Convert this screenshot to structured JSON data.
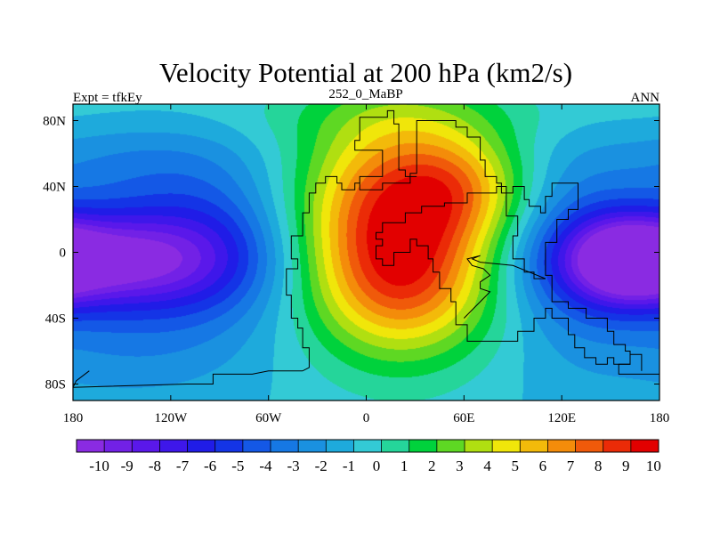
{
  "chart_data": {
    "type": "heatmap",
    "title": "Velocity Potential at 200 hPa (km2/s)",
    "left_string": "Expt = tfkEy",
    "center_string": "252_0_MaBP",
    "right_string": "ANN",
    "x_ticks": [
      "180",
      "120W",
      "60W",
      "0",
      "60E",
      "120E",
      "180"
    ],
    "y_ticks": [
      "80N",
      "40N",
      "0",
      "40S",
      "80S"
    ],
    "xlim": [
      -180,
      180
    ],
    "ylim": [
      -90,
      90
    ],
    "colorbar": {
      "min": -10,
      "max": 10,
      "labels": [
        "-10",
        "-9",
        "-8",
        "-7",
        "-6",
        "-5",
        "-4",
        "-3",
        "-2",
        "-1",
        "0",
        "1",
        "2",
        "3",
        "4",
        "5",
        "6",
        "7",
        "8",
        "9",
        "10"
      ]
    },
    "field_features": [
      {
        "type": "max",
        "lon": 20,
        "lat": 15,
        "value": 10
      },
      {
        "type": "min",
        "lon": -165,
        "lat": -5,
        "value": -9.5
      },
      {
        "type": "min",
        "lon": 160,
        "lat": -5,
        "value": -8
      }
    ],
    "continent_outlines": [
      [
        [
          -39,
          -72
        ],
        [
          -60,
          -72
        ],
        [
          -70,
          -74
        ],
        [
          -84,
          -74
        ],
        [
          -94,
          -74
        ],
        [
          -94,
          -80
        ],
        [
          -110,
          -80
        ],
        [
          -180,
          -82
        ]
      ],
      [
        [
          -39,
          -72
        ],
        [
          -35,
          -70
        ],
        [
          -35,
          -58
        ],
        [
          -39,
          -58
        ],
        [
          -39,
          -46
        ],
        [
          -42,
          -46
        ],
        [
          -42,
          -40
        ],
        [
          -46,
          -40
        ],
        [
          -46,
          -26
        ],
        [
          -49,
          -26
        ],
        [
          -49,
          -10
        ],
        [
          -42,
          -10
        ],
        [
          -42,
          -4
        ],
        [
          -46,
          -4
        ],
        [
          -46,
          10
        ],
        [
          -39,
          10
        ],
        [
          -39,
          24
        ],
        [
          -35,
          24
        ],
        [
          -35,
          36
        ],
        [
          -31,
          36
        ],
        [
          -31,
          42
        ],
        [
          -25,
          42
        ],
        [
          -25,
          46
        ],
        [
          -18,
          46
        ],
        [
          -18,
          42
        ],
        [
          -15,
          42
        ],
        [
          -15,
          38
        ],
        [
          -7,
          38
        ],
        [
          -7,
          42
        ],
        [
          -4,
          42
        ],
        [
          -4,
          38
        ],
        [
          10,
          38
        ],
        [
          10,
          42
        ],
        [
          27,
          42
        ],
        [
          27,
          48
        ],
        [
          31,
          48
        ],
        [
          31,
          80
        ],
        [
          55,
          80
        ],
        [
          55,
          76
        ],
        [
          62,
          76
        ],
        [
          62,
          70
        ],
        [
          70,
          70
        ],
        [
          70,
          56
        ],
        [
          73,
          56
        ],
        [
          73,
          46
        ],
        [
          80,
          46
        ],
        [
          80,
          42
        ],
        [
          83,
          42
        ],
        [
          83,
          36
        ],
        [
          90,
          36
        ],
        [
          90,
          40
        ],
        [
          97,
          40
        ],
        [
          97,
          32
        ],
        [
          100,
          32
        ],
        [
          100,
          28
        ],
        [
          107,
          28
        ],
        [
          107,
          24
        ],
        [
          110,
          24
        ],
        [
          110,
          34
        ],
        [
          114,
          34
        ],
        [
          114,
          42
        ],
        [
          130,
          42
        ],
        [
          130,
          26
        ],
        [
          124,
          26
        ],
        [
          124,
          20
        ],
        [
          117,
          20
        ],
        [
          117,
          6
        ],
        [
          110,
          6
        ],
        [
          110,
          -14
        ],
        [
          114,
          -14
        ],
        [
          114,
          -30
        ],
        [
          124,
          -30
        ],
        [
          124,
          -34
        ],
        [
          135,
          -34
        ],
        [
          135,
          -40
        ],
        [
          148,
          -40
        ],
        [
          148,
          -48
        ],
        [
          152,
          -48
        ],
        [
          152,
          -56
        ],
        [
          159,
          -56
        ],
        [
          159,
          -60
        ],
        [
          162,
          -60
        ],
        [
          162,
          -68
        ],
        [
          152,
          -68
        ],
        [
          152,
          -64
        ],
        [
          148,
          -64
        ],
        [
          148,
          -68
        ],
        [
          141,
          -68
        ],
        [
          141,
          -64
        ],
        [
          134,
          -64
        ],
        [
          134,
          -58
        ],
        [
          128,
          -58
        ],
        [
          128,
          -50
        ],
        [
          124,
          -50
        ],
        [
          124,
          -40
        ],
        [
          114,
          -40
        ],
        [
          114,
          -34
        ],
        [
          110,
          -34
        ],
        [
          110,
          -40
        ],
        [
          103,
          -40
        ],
        [
          103,
          -48
        ],
        [
          93,
          -48
        ],
        [
          93,
          -54
        ],
        [
          62,
          -54
        ],
        [
          62,
          -44
        ],
        [
          55,
          -44
        ],
        [
          55,
          -30
        ],
        [
          52,
          -30
        ],
        [
          52,
          -22
        ],
        [
          45,
          -22
        ],
        [
          45,
          -12
        ],
        [
          41,
          -12
        ],
        [
          41,
          -4
        ],
        [
          38,
          -4
        ],
        [
          38,
          4
        ],
        [
          31,
          4
        ],
        [
          31,
          8
        ],
        [
          27,
          8
        ],
        [
          27,
          0
        ],
        [
          17,
          0
        ],
        [
          17,
          -8
        ],
        [
          10,
          -8
        ],
        [
          10,
          -4
        ],
        [
          6,
          -4
        ],
        [
          6,
          4
        ],
        [
          10,
          4
        ],
        [
          10,
          8
        ],
        [
          6,
          8
        ],
        [
          6,
          12
        ],
        [
          10,
          12
        ],
        [
          10,
          18
        ],
        [
          24,
          18
        ],
        [
          24,
          24
        ],
        [
          34,
          24
        ],
        [
          34,
          28
        ],
        [
          48,
          28
        ],
        [
          48,
          30
        ],
        [
          62,
          30
        ],
        [
          62,
          36
        ],
        [
          80,
          36
        ],
        [
          80,
          40
        ],
        [
          86,
          40
        ],
        [
          86,
          22
        ],
        [
          93,
          22
        ],
        [
          93,
          10
        ],
        [
          90,
          10
        ],
        [
          90,
          -4
        ],
        [
          97,
          -4
        ],
        [
          97,
          -12
        ],
        [
          103,
          -12
        ],
        [
          103,
          -16
        ],
        [
          110,
          -16
        ]
      ],
      [
        [
          110,
          -16
        ],
        [
          100,
          -12
        ],
        [
          90,
          -8
        ],
        [
          70,
          -6
        ],
        [
          65,
          -4
        ],
        [
          70,
          -2
        ],
        [
          62,
          -4
        ],
        [
          65,
          -8
        ],
        [
          72,
          -10
        ],
        [
          76,
          -14
        ],
        [
          70,
          -18
        ],
        [
          70,
          -22
        ],
        [
          76,
          -24
        ],
        [
          70,
          -30
        ],
        [
          60,
          -40
        ]
      ],
      [
        [
          -4,
          42
        ],
        [
          -4,
          46
        ],
        [
          10,
          46
        ],
        [
          10,
          62
        ],
        [
          -7,
          62
        ],
        [
          -7,
          68
        ],
        [
          -4,
          68
        ],
        [
          -4,
          82
        ],
        [
          13,
          82
        ],
        [
          13,
          86
        ],
        [
          17,
          86
        ],
        [
          17,
          78
        ],
        [
          20,
          78
        ],
        [
          20,
          50
        ],
        [
          24,
          50
        ],
        [
          24,
          46
        ],
        [
          31,
          46
        ]
      ],
      [
        [
          169,
          -72
        ],
        [
          169,
          -62
        ],
        [
          162,
          -62
        ],
        [
          162,
          -68
        ],
        [
          155,
          -68
        ],
        [
          155,
          -74
        ],
        [
          180,
          -74
        ]
      ],
      [
        [
          -170,
          -72
        ],
        [
          -178,
          -78
        ],
        [
          -180,
          -82
        ]
      ]
    ]
  }
}
